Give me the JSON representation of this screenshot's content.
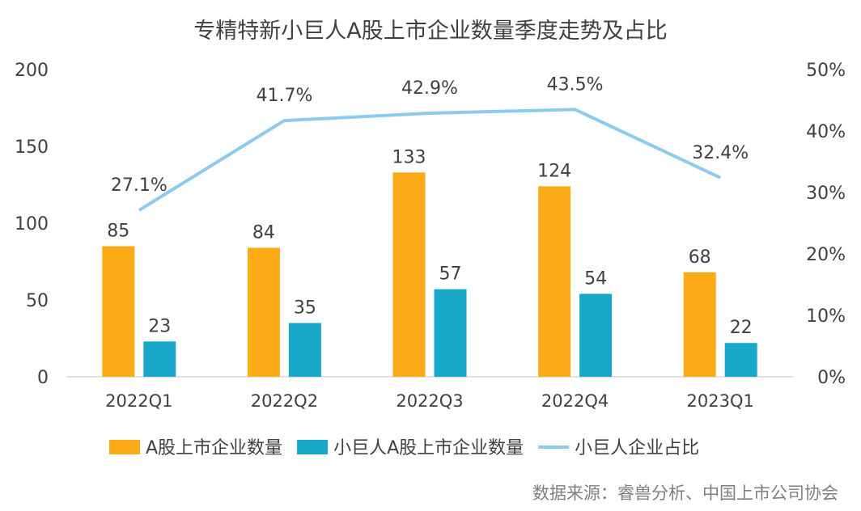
{
  "chart_data": {
    "type": "bar",
    "title": "专精特新小巨人A股上市企业数量季度走势及占比",
    "categories": [
      "2022Q1",
      "2022Q2",
      "2022Q3",
      "2022Q4",
      "2023Q1"
    ],
    "series": [
      {
        "name": "A股上市企业数量",
        "type": "bar",
        "axis": "left",
        "color": "#FBAB18",
        "values": [
          85,
          84,
          133,
          124,
          68
        ]
      },
      {
        "name": "小巨人A股上市企业数量",
        "type": "bar",
        "axis": "left",
        "color": "#19A8C9",
        "values": [
          23,
          35,
          57,
          54,
          22
        ]
      },
      {
        "name": "小巨人企业占比",
        "type": "line",
        "axis": "right",
        "color": "#8DCAF0",
        "values": [
          27.1,
          41.7,
          42.9,
          43.5,
          32.4
        ],
        "labels": [
          "27.1%",
          "41.7%",
          "42.9%",
          "43.5%",
          "32.4%"
        ]
      }
    ],
    "y_left": {
      "min": 0,
      "max": 200,
      "ticks": [
        "0",
        "50",
        "100",
        "150",
        "200"
      ]
    },
    "y_right": {
      "min": 0,
      "max": 50,
      "ticks": [
        "0%",
        "10%",
        "20%",
        "30%",
        "40%",
        "50%"
      ]
    },
    "grid": false,
    "legend_position": "bottom"
  },
  "source": "数据来源：睿兽分析、中国上市公司协会"
}
